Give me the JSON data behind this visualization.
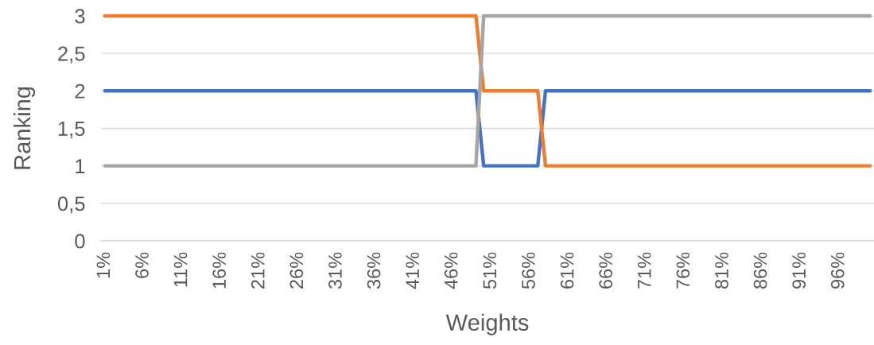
{
  "chart_data": {
    "type": "line",
    "xlabel": "Weights",
    "ylabel": "Ranking",
    "categories": [
      "1%",
      null,
      null,
      null,
      null,
      "6%",
      null,
      null,
      null,
      null,
      "11%",
      null,
      null,
      null,
      null,
      "16%",
      null,
      null,
      null,
      null,
      "21%",
      null,
      null,
      null,
      null,
      "26%",
      null,
      null,
      null,
      null,
      "31%",
      null,
      null,
      null,
      null,
      "36%",
      null,
      null,
      null,
      null,
      "41%",
      null,
      null,
      null,
      null,
      "46%",
      null,
      null,
      null,
      null,
      "51%",
      null,
      null,
      null,
      null,
      "56%",
      null,
      null,
      null,
      null,
      "61%",
      null,
      null,
      null,
      null,
      "66%",
      null,
      null,
      null,
      null,
      "71%",
      null,
      null,
      null,
      null,
      "76%",
      null,
      null,
      null,
      null,
      "81%",
      null,
      null,
      null,
      null,
      "86%",
      null,
      null,
      null,
      null,
      "91%",
      null,
      null,
      null,
      null,
      "96%",
      null,
      null,
      null,
      null
    ],
    "series": [
      {
        "color": "#4472c4",
        "values": [
          2,
          2,
          2,
          2,
          2,
          2,
          2,
          2,
          2,
          2,
          2,
          2,
          2,
          2,
          2,
          2,
          2,
          2,
          2,
          2,
          2,
          2,
          2,
          2,
          2,
          2,
          2,
          2,
          2,
          2,
          2,
          2,
          2,
          2,
          2,
          2,
          2,
          2,
          2,
          2,
          2,
          2,
          2,
          2,
          2,
          2,
          2,
          2,
          2,
          1,
          1,
          1,
          1,
          1,
          1,
          1,
          1,
          2,
          2,
          2,
          2,
          2,
          2,
          2,
          2,
          2,
          2,
          2,
          2,
          2,
          2,
          2,
          2,
          2,
          2,
          2,
          2,
          2,
          2,
          2,
          2,
          2,
          2,
          2,
          2,
          2,
          2,
          2,
          2,
          2,
          2,
          2,
          2,
          2,
          2,
          2,
          2,
          2,
          2,
          2
        ]
      },
      {
        "color": "#ed7d31",
        "values": [
          3,
          3,
          3,
          3,
          3,
          3,
          3,
          3,
          3,
          3,
          3,
          3,
          3,
          3,
          3,
          3,
          3,
          3,
          3,
          3,
          3,
          3,
          3,
          3,
          3,
          3,
          3,
          3,
          3,
          3,
          3,
          3,
          3,
          3,
          3,
          3,
          3,
          3,
          3,
          3,
          3,
          3,
          3,
          3,
          3,
          3,
          3,
          3,
          3,
          2,
          2,
          2,
          2,
          2,
          2,
          2,
          2,
          1,
          1,
          1,
          1,
          1,
          1,
          1,
          1,
          1,
          1,
          1,
          1,
          1,
          1,
          1,
          1,
          1,
          1,
          1,
          1,
          1,
          1,
          1,
          1,
          1,
          1,
          1,
          1,
          1,
          1,
          1,
          1,
          1,
          1,
          1,
          1,
          1,
          1,
          1,
          1,
          1,
          1,
          1
        ]
      },
      {
        "color": "#a5a5a5",
        "values": [
          1,
          1,
          1,
          1,
          1,
          1,
          1,
          1,
          1,
          1,
          1,
          1,
          1,
          1,
          1,
          1,
          1,
          1,
          1,
          1,
          1,
          1,
          1,
          1,
          1,
          1,
          1,
          1,
          1,
          1,
          1,
          1,
          1,
          1,
          1,
          1,
          1,
          1,
          1,
          1,
          1,
          1,
          1,
          1,
          1,
          1,
          1,
          1,
          1,
          3,
          3,
          3,
          3,
          3,
          3,
          3,
          3,
          3,
          3,
          3,
          3,
          3,
          3,
          3,
          3,
          3,
          3,
          3,
          3,
          3,
          3,
          3,
          3,
          3,
          3,
          3,
          3,
          3,
          3,
          3,
          3,
          3,
          3,
          3,
          3,
          3,
          3,
          3,
          3,
          3,
          3,
          3,
          3,
          3,
          3,
          3,
          3,
          3,
          3,
          3
        ]
      }
    ],
    "ylim": [
      0,
      3
    ],
    "yticks": [
      0,
      {
        "value": 0.5,
        "label": "0,5"
      },
      1,
      {
        "value": 1.5,
        "label": "1,5"
      },
      2,
      {
        "value": 2.5,
        "label": "2,5"
      },
      3
    ],
    "grid": "y",
    "line_style": "solid"
  }
}
